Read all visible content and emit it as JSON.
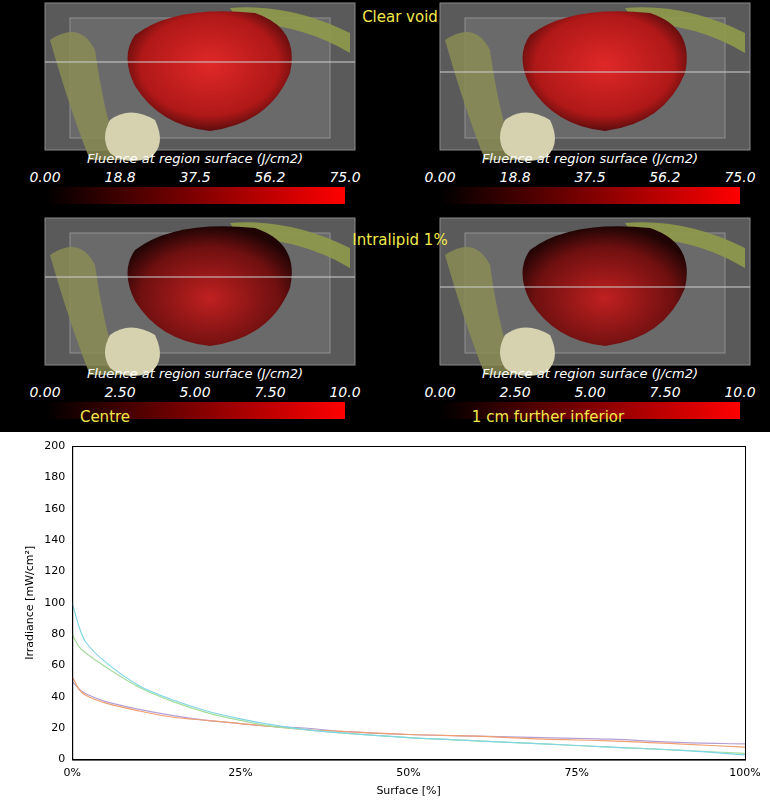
{
  "figure": {
    "annotations": [
      "Clear void",
      "Intralipid 1%",
      "Centre",
      "1 cm further inferior"
    ],
    "panels": [
      {
        "colorbar": {
          "title": "Fluence at region surface (J/cm2)",
          "range": [
            0,
            75
          ],
          "ticks": [
            {
              "value": 0,
              "label": "0.00"
            },
            18.8,
            37.5,
            56.2,
            {
              "value": 75,
              "label": "75.0"
            }
          ]
        }
      },
      {
        "colorbar": {
          "title": "Fluence at region surface (J/cm2)",
          "range": [
            0,
            75
          ],
          "ticks": [
            {
              "value": 0,
              "label": "0.00"
            },
            18.8,
            37.5,
            56.2,
            {
              "value": 75,
              "label": "75.0"
            }
          ]
        }
      },
      {
        "colorbar": {
          "title": "Fluence at region surface (J/cm2)",
          "range": [
            0,
            10
          ],
          "ticks": [
            {
              "value": 0,
              "label": "0.00"
            },
            {
              "value": 2.5,
              "label": "2.50"
            },
            {
              "value": 5,
              "label": "5.00"
            },
            {
              "value": 7.5,
              "label": "7.50"
            },
            {
              "value": 10,
              "label": "10.0"
            }
          ]
        }
      },
      {
        "colorbar": {
          "title": "Fluence at region surface (J/cm2)",
          "range": [
            0,
            10
          ],
          "ticks": [
            {
              "value": 0,
              "label": "0.00"
            },
            {
              "value": 2.5,
              "label": "2.50"
            },
            {
              "value": 5,
              "label": "5.00"
            },
            {
              "value": 7.5,
              "label": "7.50"
            },
            {
              "value": 10,
              "label": "10.0"
            }
          ]
        }
      }
    ]
  },
  "chart_data": {
    "type": "line",
    "x_label": "Surface [%]",
    "y_label": "Irradiance [mW/cm²]",
    "x": [
      0,
      1,
      2,
      5,
      10,
      15,
      20,
      25,
      30,
      35,
      40,
      50,
      60,
      70,
      80,
      90,
      100
    ],
    "series": [
      {
        "color": "#7fd6e6",
        "values": [
          100,
          85,
          75,
          62,
          47,
          38,
          31,
          26,
          22,
          19,
          17,
          14,
          12,
          10,
          8,
          6,
          3
        ]
      },
      {
        "color": "#a6dc9c",
        "values": [
          80,
          72,
          68,
          59,
          46,
          37,
          30,
          25,
          21,
          19,
          17,
          14,
          12,
          10,
          8,
          6,
          4
        ]
      },
      {
        "color": "#f0a070",
        "values": [
          53,
          45,
          41,
          36,
          31,
          27,
          25,
          23,
          21,
          19,
          18,
          16,
          15,
          13,
          12,
          10,
          8
        ]
      },
      {
        "color": "#b49fd6",
        "values": [
          50,
          45,
          42,
          37,
          32,
          28,
          25,
          23,
          21,
          20,
          18,
          16,
          15,
          14,
          13,
          11,
          10
        ]
      }
    ],
    "xlim": [
      0,
      100
    ],
    "xticks": [
      {
        "value": 0,
        "label": "0%"
      },
      {
        "value": 25,
        "label": "25%"
      },
      {
        "value": 50,
        "label": "50%"
      },
      {
        "value": 75,
        "label": "75%"
      },
      {
        "value": 100,
        "label": "100%"
      }
    ],
    "ylim": [
      0,
      200
    ],
    "yticks": [
      0,
      20,
      40,
      60,
      80,
      100,
      120,
      140,
      160,
      180,
      200
    ],
    "grid": false
  }
}
